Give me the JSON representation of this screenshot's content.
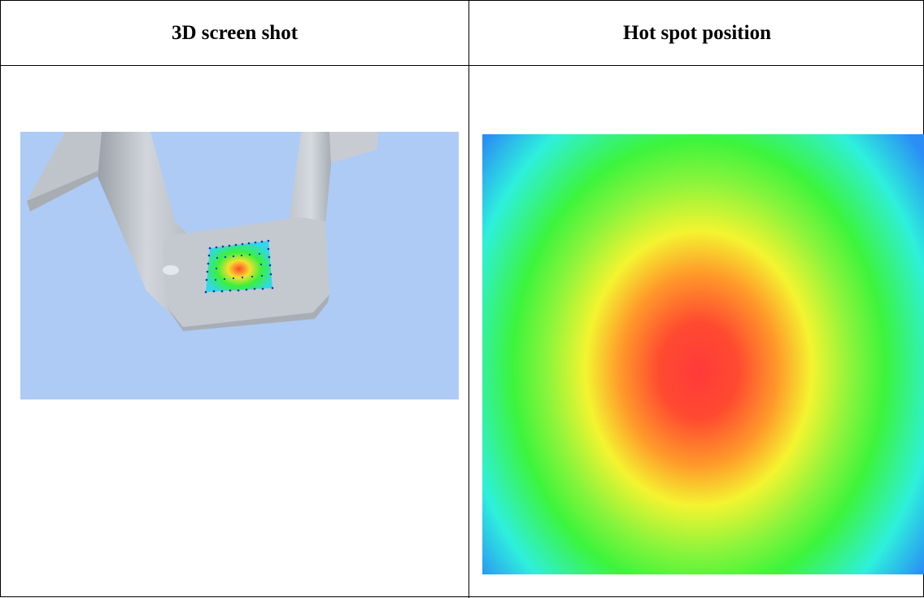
{
  "table": {
    "headers": {
      "left": "3D screen shot",
      "right": "Hot spot position"
    }
  },
  "images": {
    "screenshot_3d": {
      "background_color": "#aecbf6",
      "model_color": "#c4c9d0"
    },
    "heatmap": {
      "colors": [
        "#ff3a3a",
        "#ff9a2a",
        "#f4f430",
        "#3cf43c",
        "#2ef0dc",
        "#2a8ef5"
      ]
    }
  }
}
